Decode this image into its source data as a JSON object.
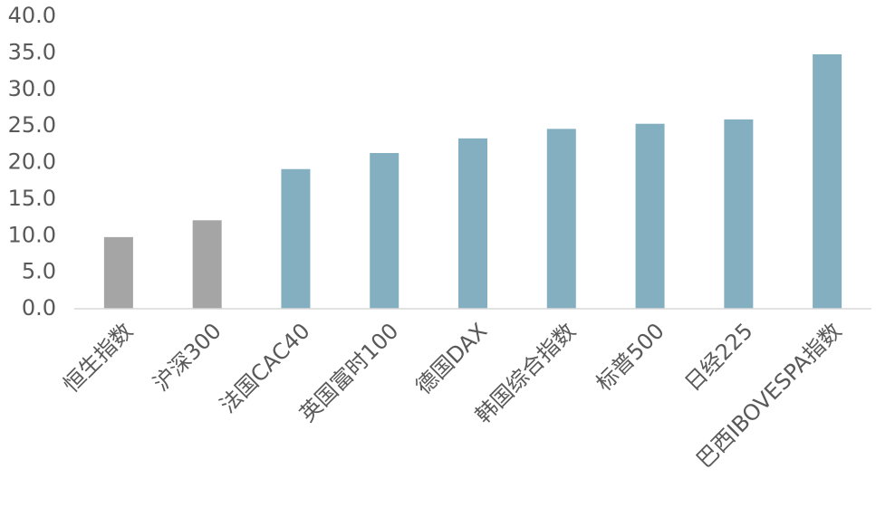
{
  "chart_data": {
    "type": "bar",
    "categories": [
      "恒生指数",
      "沪深300",
      "法国CAC40",
      "英国富时100",
      "德国DAX",
      "韩国综合指数",
      "标普500",
      "日经225",
      "巴西IBOVESPA指数"
    ],
    "values": [
      9.8,
      12.1,
      19.1,
      21.3,
      23.3,
      24.6,
      25.3,
      25.9,
      34.8
    ],
    "colors": [
      "#a5a5a5",
      "#a5a5a5",
      "#84afc0",
      "#84afc0",
      "#84afc0",
      "#84afc0",
      "#84afc0",
      "#84afc0",
      "#84afc0"
    ],
    "ylim": [
      0,
      40
    ],
    "yticks": [
      {
        "value": 0,
        "label": "0.0"
      },
      {
        "value": 5,
        "label": "5.0"
      },
      {
        "value": 10,
        "label": "10.0"
      },
      {
        "value": 15,
        "label": "15.0"
      },
      {
        "value": 20,
        "label": "20.0"
      },
      {
        "value": 25,
        "label": "25.0"
      },
      {
        "value": 30,
        "label": "30.0"
      },
      {
        "value": 35,
        "label": "35.0"
      },
      {
        "value": 40,
        "label": "40.0"
      }
    ],
    "grid": false
  }
}
